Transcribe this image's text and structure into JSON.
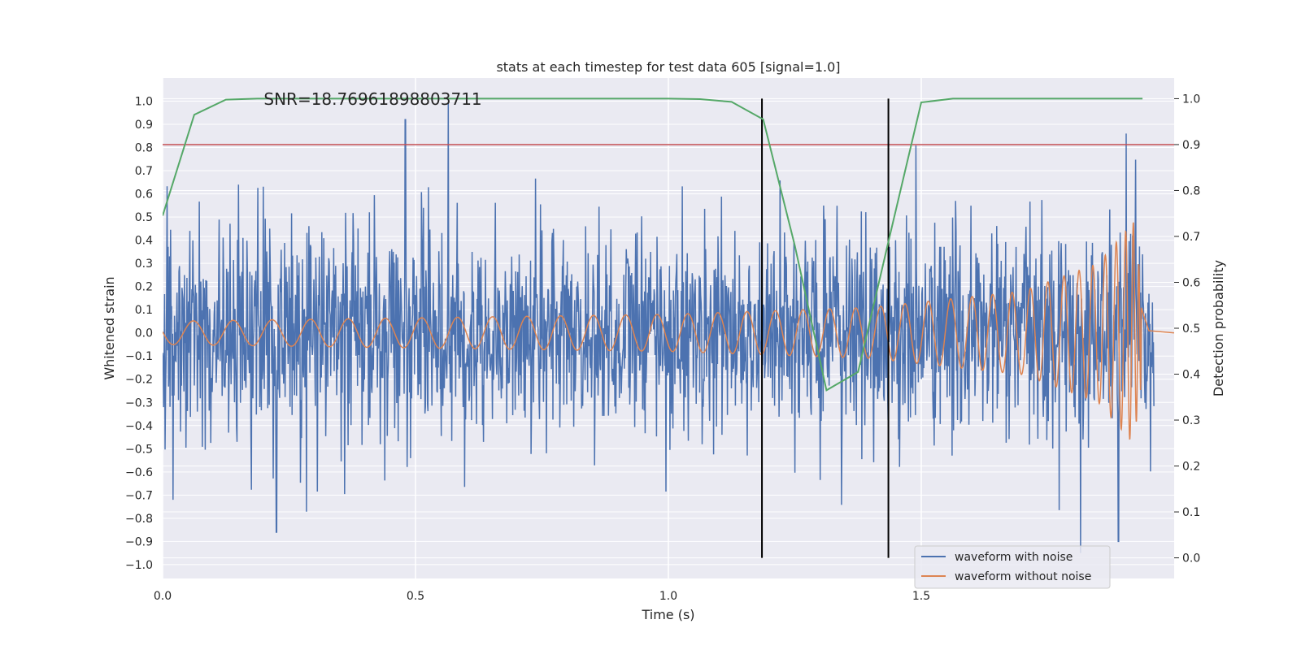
{
  "chart_data": {
    "type": "line",
    "title": "stats at each timestep for test data 605 [signal=1.0]",
    "xlabel": "Time (s)",
    "ylabel": "Whitened strain",
    "ylabel_right": "Detection probability",
    "xlim": [
      0.0,
      2.0
    ],
    "ylim": [
      -1.06,
      1.1
    ],
    "ylim_right": [
      -0.045,
      1.045
    ],
    "xticks": [
      0.0,
      0.5,
      1.0,
      1.5
    ],
    "xtick_labels": [
      "0.0",
      "0.5",
      "1.0",
      "1.5"
    ],
    "yticks": [
      1.0,
      0.9,
      0.8,
      0.7,
      0.6,
      0.5,
      0.4,
      0.3,
      0.2,
      0.1,
      0.0,
      -0.1,
      -0.2,
      -0.3,
      -0.4,
      -0.5,
      -0.6,
      -0.7,
      -0.8,
      -0.9,
      -1.0
    ],
    "ytick_labels": [
      "1.0",
      "0.9",
      "0.8",
      "0.7",
      "0.6",
      "0.5",
      "0.4",
      "0.3",
      "0.2",
      "0.1",
      "0.0",
      "−0.1",
      "−0.2",
      "−0.3",
      "−0.4",
      "−0.5",
      "−0.6",
      "−0.7",
      "−0.8",
      "−0.9",
      "−1.0"
    ],
    "yticks_right": [
      1.0,
      0.9,
      0.8,
      0.7,
      0.6,
      0.5,
      0.4,
      0.3,
      0.2,
      0.1,
      0.0
    ],
    "ytick_labels_right": [
      "1.0",
      "0.9",
      "0.8",
      "0.7",
      "0.6",
      "0.5",
      "0.4",
      "0.3",
      "0.2",
      "0.1",
      "0.0"
    ],
    "grid": true,
    "annotation": "SNR=18.76961898803711",
    "annotation_x": 0.2,
    "annotation_y": 1.02,
    "threshold_line": {
      "y_right": 0.9,
      "color": "#c44e52"
    },
    "vertical_lines": [
      1.185,
      1.435
    ],
    "series": [
      {
        "name": "waveform with noise",
        "color": "#4c72b0",
        "axis": "left",
        "kind": "noise",
        "t_start": 0.0,
        "t_end": 1.96,
        "n_points": 2000,
        "approx_std": 0.23,
        "spikes": [
          {
            "t": 0.48,
            "v": 0.92
          },
          {
            "t": 0.565,
            "v": 1.0
          },
          {
            "t": 0.225,
            "v": -0.86
          },
          {
            "t": 1.905,
            "v": 0.86
          },
          {
            "t": 1.815,
            "v": -0.95
          },
          {
            "t": 1.89,
            "v": -0.9
          }
        ]
      },
      {
        "name": "waveform without noise",
        "color": "#dd8452",
        "axis": "left",
        "kind": "chirp",
        "t_start": 0.0,
        "t_end": 2.0,
        "merger_t": 1.93,
        "amplitude_envelope": [
          [
            0.0,
            0.05
          ],
          [
            1.0,
            0.08
          ],
          [
            1.4,
            0.11
          ],
          [
            1.7,
            0.18
          ],
          [
            1.85,
            0.3
          ],
          [
            1.92,
            0.48
          ],
          [
            1.93,
            0.3
          ],
          [
            1.95,
            0.02
          ],
          [
            2.0,
            0.0
          ]
        ]
      },
      {
        "name": "detection probability",
        "color": "#55a868",
        "axis": "right",
        "x": [
          0.0,
          0.0625,
          0.125,
          0.1875,
          0.25,
          0.3125,
          0.375,
          0.4375,
          0.5,
          0.5625,
          0.625,
          0.6875,
          0.75,
          0.8125,
          0.875,
          0.9375,
          1.0,
          1.0625,
          1.125,
          1.1875,
          1.25,
          1.3125,
          1.375,
          1.4375,
          1.5,
          1.5625,
          1.625,
          1.6875,
          1.75,
          1.8125,
          1.875,
          1.9375
        ],
        "y": [
          0.745,
          0.965,
          0.998,
          1.0,
          1.0,
          1.0,
          1.0,
          1.0,
          1.0,
          1.0,
          1.0,
          1.0,
          1.0,
          1.0,
          1.0,
          1.0,
          1.0,
          0.999,
          0.993,
          0.955,
          0.68,
          0.365,
          0.405,
          0.7,
          0.992,
          1.0,
          1.0,
          1.0,
          1.0,
          1.0,
          1.0,
          1.0
        ]
      }
    ],
    "legend": {
      "position": "lower-right",
      "entries": [
        {
          "label": "waveform with noise",
          "color": "#4c72b0"
        },
        {
          "label": "waveform without noise",
          "color": "#dd8452"
        }
      ]
    }
  }
}
